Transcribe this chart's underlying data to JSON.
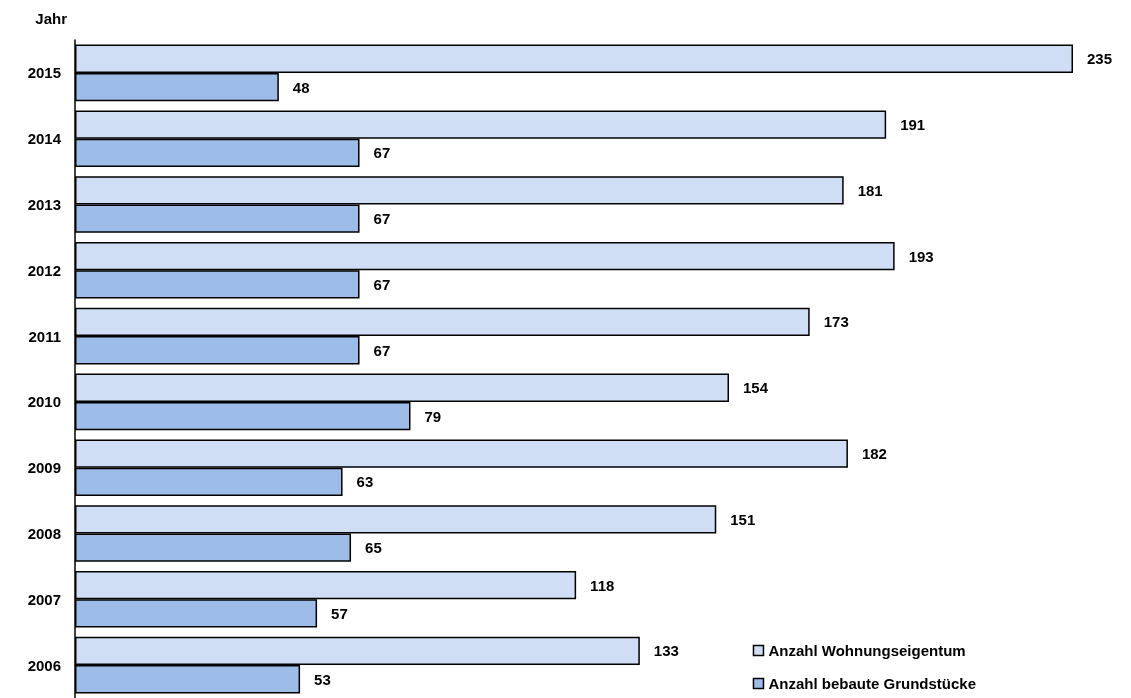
{
  "chart_data": {
    "type": "bar",
    "orientation": "horizontal",
    "ylabel": "Jahr",
    "categories": [
      "2015",
      "2014",
      "2013",
      "2012",
      "2011",
      "2010",
      "2009",
      "2008",
      "2007",
      "2006"
    ],
    "series": [
      {
        "name": "Anzahl Wohnungseigentum",
        "color": "#cfdef4",
        "values": [
          235,
          191,
          181,
          193,
          173,
          154,
          182,
          151,
          118,
          133
        ]
      },
      {
        "name": "Anzahl bebaute Grundstücke",
        "color": "#9dbde8",
        "values": [
          48,
          67,
          67,
          67,
          67,
          79,
          63,
          65,
          57,
          53
        ]
      }
    ],
    "data_labels": true,
    "legend": "bottom right",
    "tick_labels": "y"
  }
}
